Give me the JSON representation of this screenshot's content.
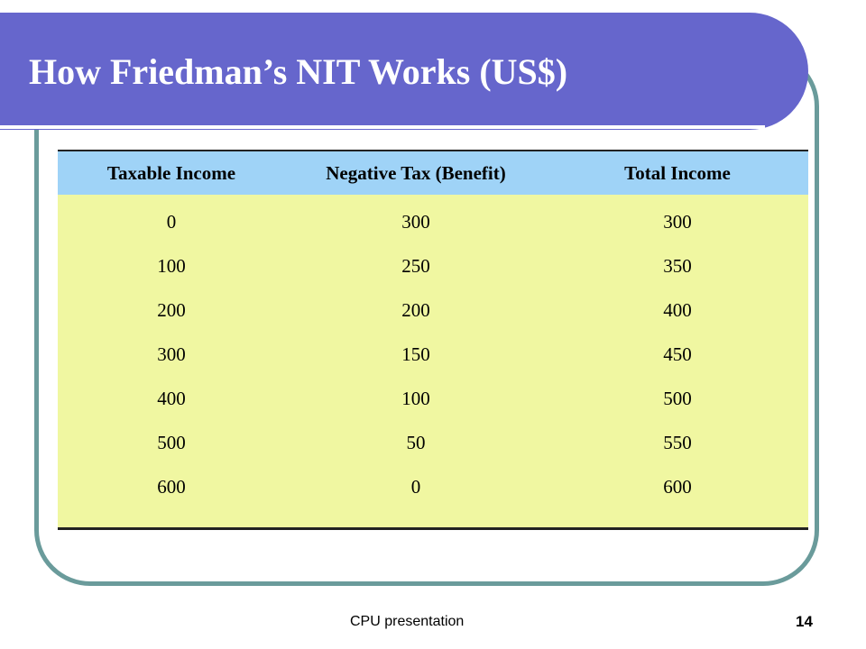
{
  "slide": {
    "title": "How Friedman’s  NIT Works (US$)",
    "footer": "CPU presentation",
    "page_number": "14"
  },
  "colors": {
    "title_bar": "#6666cc",
    "frame_border": "#6a9b9b",
    "table_header_bg": "#9fd3f7",
    "table_body_bg": "#f0f7a1"
  },
  "table": {
    "headers": [
      "Taxable Income",
      "Negative Tax (Benefit)",
      "Total Income"
    ],
    "rows": [
      [
        "0",
        "300",
        "300"
      ],
      [
        "100",
        "250",
        "350"
      ],
      [
        "200",
        "200",
        "400"
      ],
      [
        "300",
        "150",
        "450"
      ],
      [
        "400",
        "100",
        "500"
      ],
      [
        "500",
        "50",
        "550"
      ],
      [
        "600",
        "0",
        "600"
      ]
    ]
  }
}
